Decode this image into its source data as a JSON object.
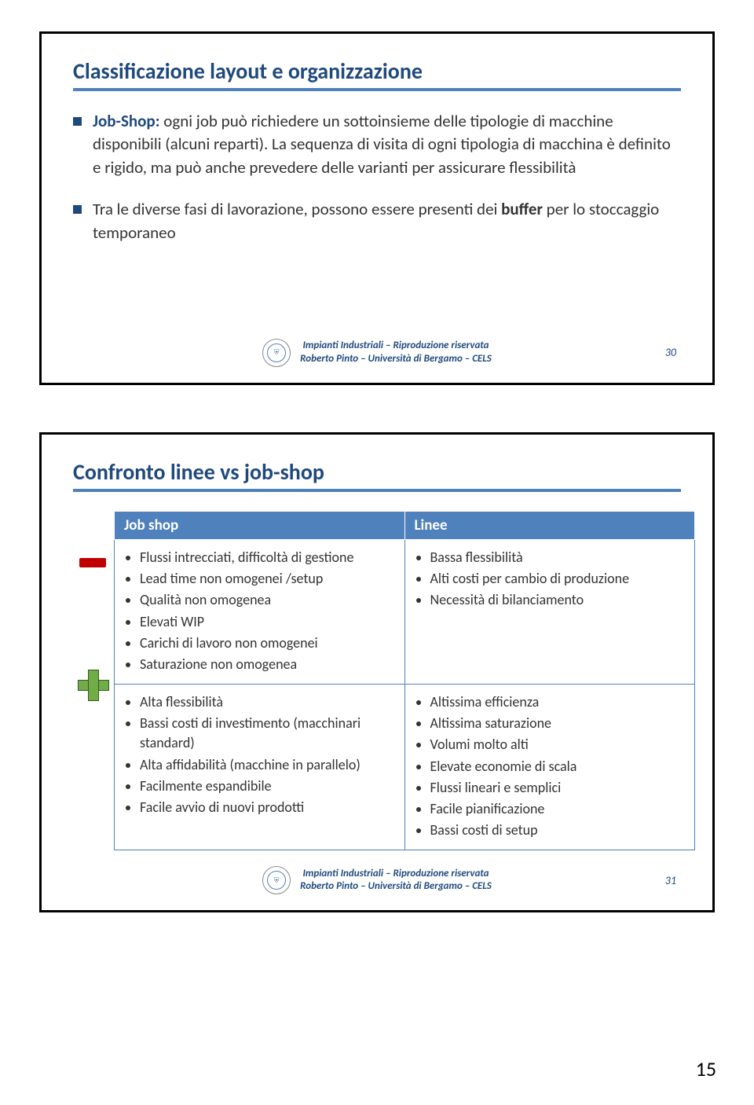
{
  "slide1": {
    "title": "Classificazione layout e organizzazione",
    "bullet1_prefix": "Job-Shop:",
    "bullet1_text": " ogni job può richiedere un sottoinsieme delle tipologie di macchine disponibili (alcuni reparti). La sequenza di visita di ogni tipologia di macchina è definito e rigido, ma può anche prevedere delle varianti per assicurare flessibilità",
    "bullet2_pre": "Tra le diverse fasi di lavorazione, possono essere presenti dei ",
    "bullet2_bold": "buffer",
    "bullet2_post": " per lo stoccaggio temporaneo",
    "page": "30"
  },
  "slide2": {
    "title": "Confronto linee vs job-shop",
    "header_left": "Job shop",
    "header_right": "Linee",
    "neg_left": [
      "Flussi intrecciati, difficoltà di gestione",
      "Lead time non omogenei /setup",
      "Qualità non omogenea",
      "Elevati WIP",
      "Carichi di lavoro non omogenei",
      "Saturazione non omogenea"
    ],
    "neg_right": [
      "Bassa flessibilità",
      "Alti costi per cambio di produzione",
      "Necessità di bilanciamento"
    ],
    "pos_left": [
      "Alta flessibilità",
      "Bassi costi di investimento (macchinari standard)",
      "Alta affidabilità (macchine in parallelo)",
      "Facilmente espandibile",
      "Facile avvio di nuovi prodotti"
    ],
    "pos_right": [
      "Altissima efficienza",
      "Altissima saturazione",
      "Volumi molto alti",
      "Elevate economie di scala",
      "Flussi lineari e semplici",
      "Facile pianificazione",
      "Bassi costi di setup"
    ],
    "page": "31"
  },
  "footer": {
    "line1": "Impianti Industriali – Riproduzione riservata",
    "line2": "Roberto Pinto – Università di Bergamo – CELS"
  },
  "doc_page": "15",
  "colors": {
    "accent": "#4f81bd",
    "dark_blue": "#1f497d",
    "red": "#c00000",
    "green": "#70ad47"
  }
}
